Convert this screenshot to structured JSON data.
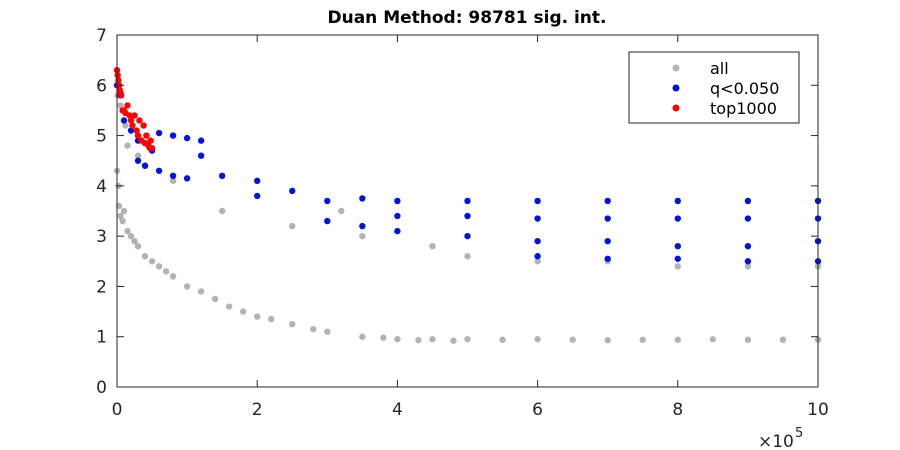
{
  "chart_data": {
    "type": "scatter",
    "title": "Duan Method: 98781 sig. int.",
    "xlabel": "",
    "ylabel": "",
    "xlim": [
      0,
      1000000
    ],
    "ylim": [
      0,
      7
    ],
    "x_exponent_label": "×10",
    "x_exponent_power": "5",
    "xticks": [
      {
        "value": 0,
        "label": "0"
      },
      {
        "value": 200000,
        "label": "2"
      },
      {
        "value": 400000,
        "label": "4"
      },
      {
        "value": 600000,
        "label": "6"
      },
      {
        "value": 800000,
        "label": "8"
      },
      {
        "value": 1000000,
        "label": "10"
      }
    ],
    "yticks": [
      {
        "value": 0,
        "label": "0"
      },
      {
        "value": 1,
        "label": "1"
      },
      {
        "value": 2,
        "label": "2"
      },
      {
        "value": 3,
        "label": "3"
      },
      {
        "value": 4,
        "label": "4"
      },
      {
        "value": 5,
        "label": "5"
      },
      {
        "value": 6,
        "label": "6"
      },
      {
        "value": 7,
        "label": "7"
      }
    ],
    "legend_position": "top-right",
    "grid": false,
    "series": [
      {
        "name": "all",
        "color": "#b3b3b3",
        "points": [
          [
            0,
            4.3
          ],
          [
            1000,
            5.8
          ],
          [
            2000,
            4.0
          ],
          [
            3000,
            3.6
          ],
          [
            5000,
            5.6
          ],
          [
            5000,
            3.4
          ],
          [
            8000,
            3.3
          ],
          [
            10000,
            3.5
          ],
          [
            12000,
            5.2
          ],
          [
            15000,
            3.1
          ],
          [
            15000,
            4.8
          ],
          [
            20000,
            3.0
          ],
          [
            25000,
            2.9
          ],
          [
            30000,
            4.6
          ],
          [
            30000,
            2.8
          ],
          [
            40000,
            2.6
          ],
          [
            40000,
            4.4
          ],
          [
            50000,
            2.5
          ],
          [
            60000,
            2.4
          ],
          [
            70000,
            2.3
          ],
          [
            80000,
            2.2
          ],
          [
            80000,
            4.1
          ],
          [
            100000,
            2.0
          ],
          [
            120000,
            1.9
          ],
          [
            140000,
            1.75
          ],
          [
            160000,
            1.6
          ],
          [
            180000,
            1.5
          ],
          [
            200000,
            1.4
          ],
          [
            220000,
            1.35
          ],
          [
            250000,
            1.25
          ],
          [
            280000,
            1.15
          ],
          [
            300000,
            1.1
          ],
          [
            320000,
            3.5
          ],
          [
            350000,
            1.0
          ],
          [
            380000,
            0.98
          ],
          [
            400000,
            0.95
          ],
          [
            430000,
            0.93
          ],
          [
            450000,
            0.95
          ],
          [
            480000,
            0.92
          ],
          [
            500000,
            0.95
          ],
          [
            550000,
            0.94
          ],
          [
            600000,
            0.95
          ],
          [
            650000,
            0.94
          ],
          [
            700000,
            0.93
          ],
          [
            750000,
            0.94
          ],
          [
            800000,
            0.94
          ],
          [
            850000,
            0.95
          ],
          [
            900000,
            0.94
          ],
          [
            950000,
            0.94
          ],
          [
            1000000,
            0.94
          ],
          [
            500000,
            2.6
          ],
          [
            600000,
            2.5
          ],
          [
            700000,
            2.5
          ],
          [
            800000,
            2.4
          ],
          [
            900000,
            2.4
          ],
          [
            1000000,
            2.4
          ],
          [
            150000,
            3.5
          ],
          [
            250000,
            3.2
          ],
          [
            350000,
            3.0
          ],
          [
            450000,
            2.8
          ]
        ]
      },
      {
        "name": "q<0.050",
        "color": "#0015d9",
        "points": [
          [
            0,
            6.0
          ],
          [
            5000,
            5.8
          ],
          [
            10000,
            5.3
          ],
          [
            20000,
            5.1
          ],
          [
            30000,
            4.9
          ],
          [
            50000,
            4.7
          ],
          [
            60000,
            5.05
          ],
          [
            80000,
            5.0
          ],
          [
            100000,
            4.95
          ],
          [
            120000,
            4.9
          ],
          [
            120000,
            4.6
          ],
          [
            150000,
            4.2
          ],
          [
            200000,
            4.1
          ],
          [
            250000,
            3.9
          ],
          [
            300000,
            3.7
          ],
          [
            350000,
            3.75
          ],
          [
            400000,
            3.7
          ],
          [
            500000,
            3.7
          ],
          [
            600000,
            3.7
          ],
          [
            700000,
            3.7
          ],
          [
            800000,
            3.7
          ],
          [
            900000,
            3.7
          ],
          [
            1000000,
            3.7
          ],
          [
            400000,
            3.4
          ],
          [
            500000,
            3.4
          ],
          [
            600000,
            3.35
          ],
          [
            700000,
            3.35
          ],
          [
            800000,
            3.35
          ],
          [
            900000,
            3.35
          ],
          [
            1000000,
            3.35
          ],
          [
            400000,
            3.1
          ],
          [
            500000,
            3.0
          ],
          [
            600000,
            2.9
          ],
          [
            700000,
            2.9
          ],
          [
            800000,
            2.8
          ],
          [
            900000,
            2.8
          ],
          [
            1000000,
            2.9
          ],
          [
            600000,
            2.6
          ],
          [
            700000,
            2.55
          ],
          [
            800000,
            2.55
          ],
          [
            900000,
            2.5
          ],
          [
            1000000,
            2.5
          ],
          [
            30000,
            4.5
          ],
          [
            40000,
            4.4
          ],
          [
            60000,
            4.3
          ],
          [
            80000,
            4.2
          ],
          [
            100000,
            4.15
          ],
          [
            200000,
            3.8
          ],
          [
            300000,
            3.3
          ],
          [
            350000,
            3.2
          ]
        ]
      },
      {
        "name": "top1000",
        "color": "#ff0000",
        "points": [
          [
            0,
            6.3
          ],
          [
            1000,
            6.2
          ],
          [
            2000,
            6.1
          ],
          [
            3000,
            6.0
          ],
          [
            4000,
            5.9
          ],
          [
            5000,
            5.85
          ],
          [
            6000,
            5.8
          ],
          [
            8000,
            5.5
          ],
          [
            10000,
            5.5
          ],
          [
            12000,
            5.45
          ],
          [
            15000,
            5.6
          ],
          [
            18000,
            5.4
          ],
          [
            20000,
            5.3
          ],
          [
            22000,
            5.2
          ],
          [
            25000,
            5.4
          ],
          [
            28000,
            5.1
          ],
          [
            30000,
            5.0
          ],
          [
            32000,
            5.3
          ],
          [
            35000,
            4.9
          ],
          [
            38000,
            5.2
          ],
          [
            40000,
            4.85
          ],
          [
            42000,
            5.0
          ],
          [
            45000,
            4.8
          ],
          [
            47000,
            4.75
          ],
          [
            48000,
            4.9
          ],
          [
            50000,
            4.75
          ]
        ]
      }
    ]
  }
}
